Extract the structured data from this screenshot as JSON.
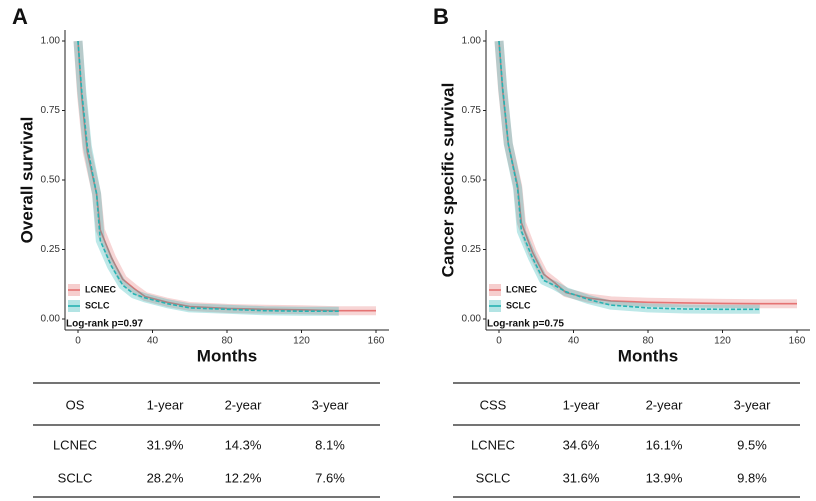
{
  "chart_data": [
    {
      "type": "line",
      "panel_label": "A",
      "ylabel": "Overall survival",
      "xlabel": "Months",
      "annotation": "Log-rank p=0.97",
      "x": [
        0,
        2,
        5,
        10,
        12,
        18,
        24,
        30,
        36,
        48,
        60,
        80,
        100,
        120,
        140,
        160
      ],
      "series": [
        {
          "name": "LCNEC",
          "color": "#e57373",
          "values": [
            1.0,
            0.8,
            0.6,
            0.45,
            0.32,
            0.22,
            0.143,
            0.11,
            0.081,
            0.06,
            0.045,
            0.038,
            0.035,
            0.033,
            0.03,
            0.03
          ]
        },
        {
          "name": "SCLC",
          "color": "#26b3b3",
          "values": [
            1.0,
            0.82,
            0.62,
            0.45,
            0.282,
            0.19,
            0.122,
            0.09,
            0.076,
            0.055,
            0.04,
            0.035,
            0.03,
            0.028,
            0.028,
            null
          ]
        }
      ],
      "xlim": [
        0,
        160
      ],
      "xticks": [
        0,
        40,
        80,
        120,
        160
      ],
      "ylim": [
        0,
        1
      ],
      "yticks": [
        {
          "value": 0,
          "label": "0.00"
        },
        0.25,
        {
          "value": 0.5,
          "label": "0.50"
        },
        0.75,
        {
          "value": 1,
          "label": "1.00"
        }
      ]
    },
    {
      "type": "line",
      "panel_label": "B",
      "ylabel": "Cancer specific survival",
      "xlabel": "Months",
      "annotation": "Log-rank p=0.75",
      "x": [
        0,
        2,
        5,
        10,
        12,
        18,
        24,
        30,
        36,
        48,
        60,
        80,
        100,
        120,
        140,
        160
      ],
      "series": [
        {
          "name": "LCNEC",
          "color": "#e57373",
          "values": [
            1.0,
            0.82,
            0.63,
            0.48,
            0.346,
            0.24,
            0.161,
            0.13,
            0.095,
            0.075,
            0.065,
            0.06,
            0.058,
            0.056,
            0.055,
            0.055
          ]
        },
        {
          "name": "SCLC",
          "color": "#26b3b3",
          "values": [
            1.0,
            0.83,
            0.63,
            0.47,
            0.316,
            0.22,
            0.139,
            0.12,
            0.098,
            0.07,
            0.05,
            0.04,
            0.036,
            0.035,
            0.035,
            null
          ]
        }
      ],
      "xlim": [
        0,
        160
      ],
      "xticks": [
        0,
        40,
        80,
        120,
        160
      ],
      "ylim": [
        0,
        1
      ],
      "yticks": [
        {
          "value": 0,
          "label": "0.00"
        },
        0.25,
        {
          "value": 0.5,
          "label": "0.50"
        },
        0.75,
        {
          "value": 1,
          "label": "1.00"
        }
      ]
    }
  ],
  "tables": [
    {
      "header": [
        "OS",
        "1-year",
        "2-year",
        "3-year"
      ],
      "rows": [
        [
          "LCNEC",
          "31.9%",
          "14.3%",
          "8.1%"
        ],
        [
          "SCLC",
          "28.2%",
          "12.2%",
          "7.6%"
        ]
      ]
    },
    {
      "header": [
        "CSS",
        "1-year",
        "2-year",
        "3-year"
      ],
      "rows": [
        [
          "LCNEC",
          "34.6%",
          "16.1%",
          "9.5%"
        ],
        [
          "SCLC",
          "31.6%",
          "13.9%",
          "9.8%"
        ]
      ]
    }
  ]
}
